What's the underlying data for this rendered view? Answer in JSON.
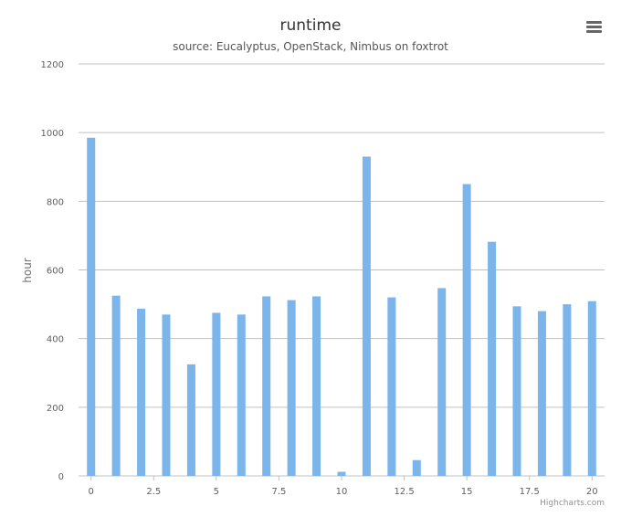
{
  "chart_data": {
    "type": "bar",
    "title": "runtime",
    "subtitle": "source: Eucalyptus, OpenStack, Nimbus on foxtrot",
    "xlabel": "",
    "ylabel": "hour",
    "x": [
      0,
      1,
      2,
      3,
      4,
      5,
      6,
      7,
      8,
      9,
      10,
      11,
      12,
      13,
      14,
      15,
      16,
      17,
      18,
      19,
      20
    ],
    "values": [
      985,
      525,
      487,
      470,
      325,
      475,
      470,
      523,
      512,
      523,
      12,
      930,
      520,
      46,
      547,
      850,
      682,
      494,
      480,
      500,
      509
    ],
    "xlim": [
      -0.5,
      20.5
    ],
    "ylim": [
      0,
      1200
    ],
    "x_ticks": [
      0,
      2.5,
      5,
      7.5,
      10,
      12.5,
      15,
      17.5,
      20
    ],
    "x_tick_labels": [
      "0",
      "2.5",
      "5",
      "7.5",
      "10",
      "12.5",
      "15",
      "17.5",
      "20"
    ],
    "y_ticks": [
      0,
      200,
      400,
      600,
      800,
      1000,
      1200
    ],
    "y_tick_labels": [
      "0",
      "200",
      "400",
      "600",
      "800",
      "1000",
      "1200"
    ],
    "grid": true,
    "legend": false,
    "bar_color": "#7cb5ec",
    "grid_color": "#c0c0c0"
  },
  "credits": "Highcharts.com",
  "menu_icon": "hamburger-menu-icon"
}
